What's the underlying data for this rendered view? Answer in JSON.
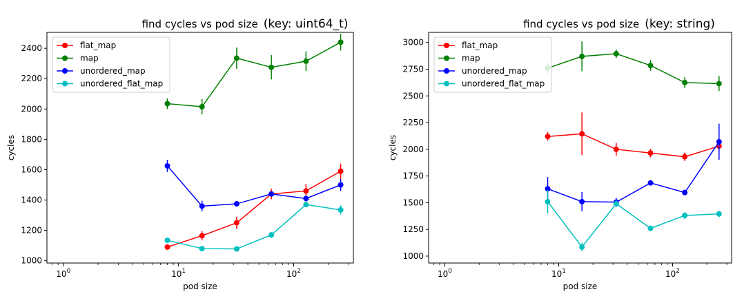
{
  "chart_data": [
    {
      "type": "line",
      "title": "find cycles vs pod size",
      "title_key": "(key: uint64_t)",
      "xlabel": "pod size",
      "ylabel": "cycles",
      "xscale": "log",
      "xlim": [
        0.72,
        330
      ],
      "ylim": [
        985,
        2505
      ],
      "x_ticks": [
        1,
        10,
        100
      ],
      "x_tick_labels": [
        [
          "10",
          "0"
        ],
        [
          "10",
          "1"
        ],
        [
          "10",
          "2"
        ]
      ],
      "y_ticks": [
        1000,
        1200,
        1400,
        1600,
        1800,
        2000,
        2200,
        2400
      ],
      "y_tick_labels": [
        "1000",
        "1200",
        "1400",
        "1600",
        "1800",
        "2000",
        "2200",
        "2400"
      ],
      "legend_position": "upper-left",
      "x": [
        8,
        16,
        32,
        64,
        128,
        256
      ],
      "series": [
        {
          "name": "flat_map",
          "color": "#ff0000",
          "values": [
            1090,
            1165,
            1250,
            1440,
            1460,
            1590
          ],
          "errors": [
            18,
            30,
            40,
            35,
            45,
            50
          ]
        },
        {
          "name": "map",
          "color": "#008000",
          "values": [
            2035,
            2015,
            2335,
            2275,
            2315,
            2440
          ],
          "errors": [
            35,
            50,
            70,
            80,
            65,
            55
          ]
        },
        {
          "name": "unordered_map",
          "color": "#0000ff",
          "values": [
            1625,
            1360,
            1375,
            1440,
            1410,
            1500
          ],
          "errors": [
            40,
            35,
            15,
            15,
            20,
            40
          ]
        },
        {
          "name": "unordered_flat_map",
          "color": "#00bfbf",
          "values": [
            1135,
            1080,
            1078,
            1170,
            1370,
            1335
          ],
          "errors": [
            10,
            12,
            12,
            20,
            15,
            30
          ]
        }
      ]
    },
    {
      "type": "line",
      "title": "find cycles vs pod size",
      "title_key": "(key: string)",
      "xlabel": "pod size",
      "ylabel": "cycles",
      "xscale": "log",
      "xlim": [
        0.72,
        330
      ],
      "ylim": [
        935,
        3095
      ],
      "x_ticks": [
        1,
        10,
        100
      ],
      "x_tick_labels": [
        [
          "10",
          "0"
        ],
        [
          "10",
          "1"
        ],
        [
          "10",
          "2"
        ]
      ],
      "y_ticks": [
        1000,
        1250,
        1500,
        1750,
        2000,
        2250,
        2500,
        2750,
        3000
      ],
      "y_tick_labels": [
        "1000",
        "1250",
        "1500",
        "1750",
        "2000",
        "2250",
        "2500",
        "2750",
        "3000"
      ],
      "legend_position": "upper-left",
      "x": [
        8,
        16,
        32,
        64,
        128,
        256
      ],
      "series": [
        {
          "name": "flat_map",
          "color": "#ff0000",
          "values": [
            2120,
            2145,
            2000,
            1965,
            1930,
            2030
          ],
          "errors": [
            40,
            200,
            60,
            40,
            40,
            50
          ]
        },
        {
          "name": "map",
          "color": "#008000",
          "values": [
            2760,
            2870,
            2895,
            2785,
            2625,
            2615
          ],
          "errors": [
            50,
            140,
            40,
            50,
            50,
            70
          ]
        },
        {
          "name": "unordered_map",
          "color": "#0000ff",
          "values": [
            1630,
            1510,
            1505,
            1685,
            1595,
            2070
          ],
          "errors": [
            110,
            90,
            40,
            25,
            25,
            170
          ]
        },
        {
          "name": "unordered_flat_map",
          "color": "#00bfbf",
          "values": [
            1510,
            1085,
            1490,
            1260,
            1380,
            1395
          ],
          "errors": [
            110,
            40,
            30,
            20,
            30,
            30
          ]
        }
      ]
    }
  ]
}
